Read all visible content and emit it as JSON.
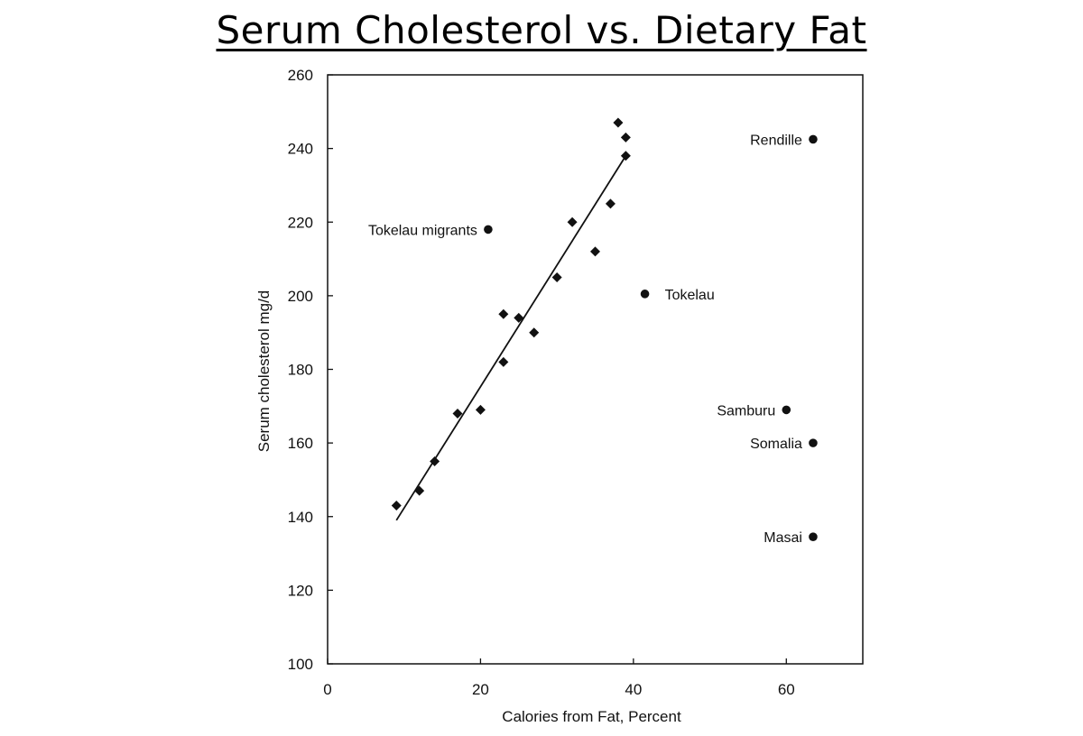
{
  "page": {
    "title": "Serum Cholesterol vs. Dietary Fat"
  },
  "chart_data": {
    "type": "scatter",
    "title": "Serum Cholesterol vs. Dietary Fat",
    "xlabel": "Calories from Fat, Percent",
    "ylabel": "Serum cholesterol mg/d",
    "xlim": [
      0,
      70
    ],
    "ylim": [
      100,
      260
    ],
    "xticks": [
      0,
      20,
      40,
      60
    ],
    "yticks": [
      100,
      120,
      140,
      160,
      180,
      200,
      220,
      240,
      260
    ],
    "grid": false,
    "series": [
      {
        "marker": "diamond",
        "points": [
          {
            "x": 9,
            "y": 143
          },
          {
            "x": 12,
            "y": 147
          },
          {
            "x": 14,
            "y": 155
          },
          {
            "x": 17,
            "y": 168
          },
          {
            "x": 20,
            "y": 169
          },
          {
            "x": 23,
            "y": 182
          },
          {
            "x": 23,
            "y": 195
          },
          {
            "x": 25,
            "y": 194
          },
          {
            "x": 27,
            "y": 190
          },
          {
            "x": 30,
            "y": 205
          },
          {
            "x": 32,
            "y": 220
          },
          {
            "x": 35,
            "y": 212
          },
          {
            "x": 37,
            "y": 225
          },
          {
            "x": 38,
            "y": 247
          },
          {
            "x": 39,
            "y": 243
          },
          {
            "x": 39,
            "y": 238
          }
        ]
      },
      {
        "marker": "circle",
        "points": [
          {
            "x": 21,
            "y": 218,
            "label": "Tokelau migrants"
          },
          {
            "x": 41.5,
            "y": 200.5,
            "label": "Tokelau"
          },
          {
            "x": 63.5,
            "y": 242.5,
            "label": "Rendille"
          },
          {
            "x": 60,
            "y": 169,
            "label": "Samburu"
          },
          {
            "x": 63.5,
            "y": 160,
            "label": "Somalia"
          },
          {
            "x": 63.5,
            "y": 134.5,
            "label": "Masai"
          }
        ]
      }
    ],
    "trendline": {
      "x": [
        9,
        39
      ],
      "y": [
        139,
        238
      ]
    }
  }
}
